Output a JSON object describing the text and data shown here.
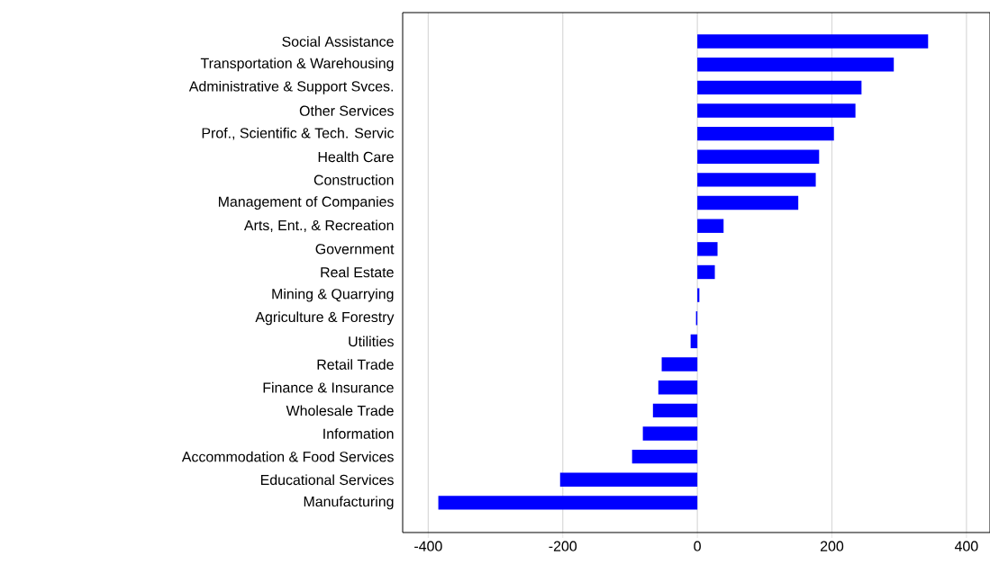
{
  "chart_data": {
    "type": "bar",
    "orientation": "horizontal",
    "categories": [
      "Social Assistance",
      "Transportation & Warehousing",
      "Administrative & Support Svces.",
      "Other Services",
      "Prof., Scientific & Tech. Servic",
      "Health Care",
      "Construction",
      "Management of Companies",
      "Arts, Ent., & Recreation",
      "Government",
      "Real Estate",
      "Mining & Quarrying",
      "Agriculture & Forestry",
      "Utilities",
      "Retail Trade",
      "Finance & Insurance",
      "Wholesale Trade",
      "Information",
      "Accommodation & Food Services",
      "Educational Services",
      "Manufacturing"
    ],
    "values": [
      343,
      292,
      244,
      235,
      203,
      181,
      176,
      150,
      39,
      30,
      26,
      3,
      -2,
      -10,
      -53,
      -58,
      -66,
      -81,
      -97,
      -204,
      -385
    ],
    "color": "#0000ff",
    "xlim": [
      -438,
      435
    ],
    "xticks": [
      -400,
      -200,
      0,
      200,
      400
    ],
    "grid": "x"
  }
}
